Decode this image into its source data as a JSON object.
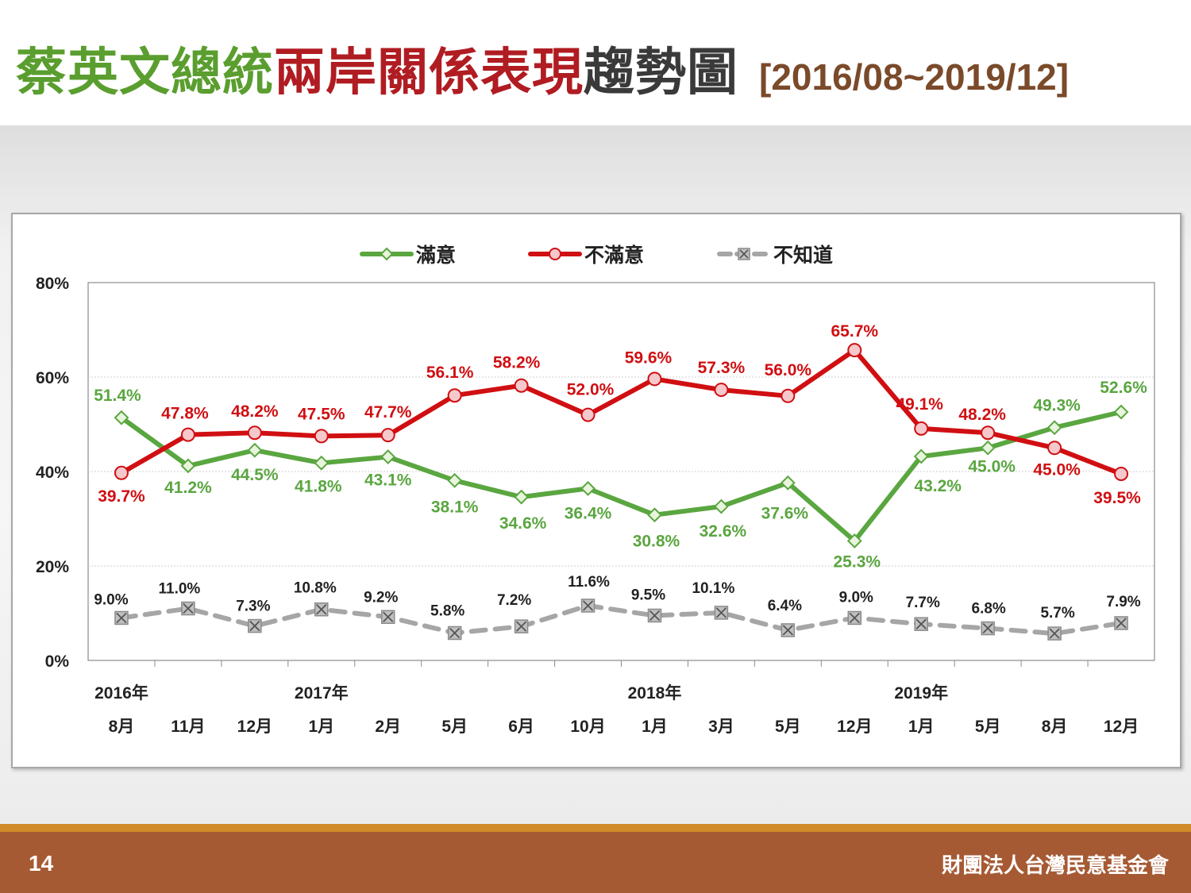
{
  "title": {
    "part1": "蔡英文總統",
    "part2": "兩岸關係表現",
    "part3": "趨勢圖",
    "period": "[2016/08~2019/12]"
  },
  "footer": {
    "page_number": "14",
    "organization": "財團法人台灣民意基金會"
  },
  "chart_data": {
    "type": "line",
    "ylim": [
      0,
      80
    ],
    "yticks": [
      "0%",
      "20%",
      "40%",
      "60%",
      "80%"
    ],
    "grid": true,
    "legend_position": "top",
    "years": [
      {
        "label": "2016年",
        "index": 0
      },
      {
        "label": "2017年",
        "index": 3
      },
      {
        "label": "2018年",
        "index": 8
      },
      {
        "label": "2019年",
        "index": 12
      }
    ],
    "categories": [
      "8月",
      "11月",
      "12月",
      "1月",
      "2月",
      "5月",
      "6月",
      "10月",
      "1月",
      "3月",
      "5月",
      "12月",
      "1月",
      "5月",
      "8月",
      "12月"
    ],
    "series": [
      {
        "name": "滿意",
        "color": "#5aa640",
        "marker": "diamond",
        "dashed": false,
        "values": [
          51.4,
          41.2,
          44.5,
          41.8,
          43.1,
          38.1,
          34.6,
          36.4,
          30.8,
          32.6,
          37.6,
          25.3,
          43.2,
          45.0,
          49.3,
          52.6
        ],
        "labels": [
          "51.4%",
          "41.2%",
          "44.5%",
          "41.8%",
          "43.1%",
          "38.1%",
          "34.6%",
          "36.4%",
          "30.8%",
          "32.6%",
          "37.6%",
          "25.3%",
          "43.2%",
          "45.0%",
          "49.3%",
          "52.6%"
        ]
      },
      {
        "name": "不滿意",
        "color": "#d00f12",
        "marker": "circle",
        "dashed": false,
        "values": [
          39.7,
          47.8,
          48.2,
          47.5,
          47.7,
          56.1,
          58.2,
          52.0,
          59.6,
          57.3,
          56.0,
          65.7,
          49.1,
          48.2,
          45.0,
          39.5
        ],
        "labels": [
          "39.7%",
          "47.8%",
          "48.2%",
          "47.5%",
          "47.7%",
          "56.1%",
          "58.2%",
          "52.0%",
          "59.6%",
          "57.3%",
          "56.0%",
          "65.7%",
          "49.1%",
          "48.2%",
          "45.0%",
          "39.5%"
        ]
      },
      {
        "name": "不知道",
        "color": "#a6a6a6",
        "marker": "x-square",
        "dashed": true,
        "values": [
          9.0,
          11.0,
          7.3,
          10.8,
          9.2,
          5.8,
          7.2,
          11.6,
          9.5,
          10.1,
          6.4,
          9.0,
          7.7,
          6.8,
          5.7,
          7.9
        ],
        "labels": [
          "9.0%",
          "11.0%",
          "7.3%",
          "10.8%",
          "9.2%",
          "5.8%",
          "7.2%",
          "11.6%",
          "9.5%",
          "10.1%",
          "6.4%",
          "9.0%",
          "7.7%",
          "6.8%",
          "5.7%",
          "7.9%"
        ]
      }
    ]
  }
}
